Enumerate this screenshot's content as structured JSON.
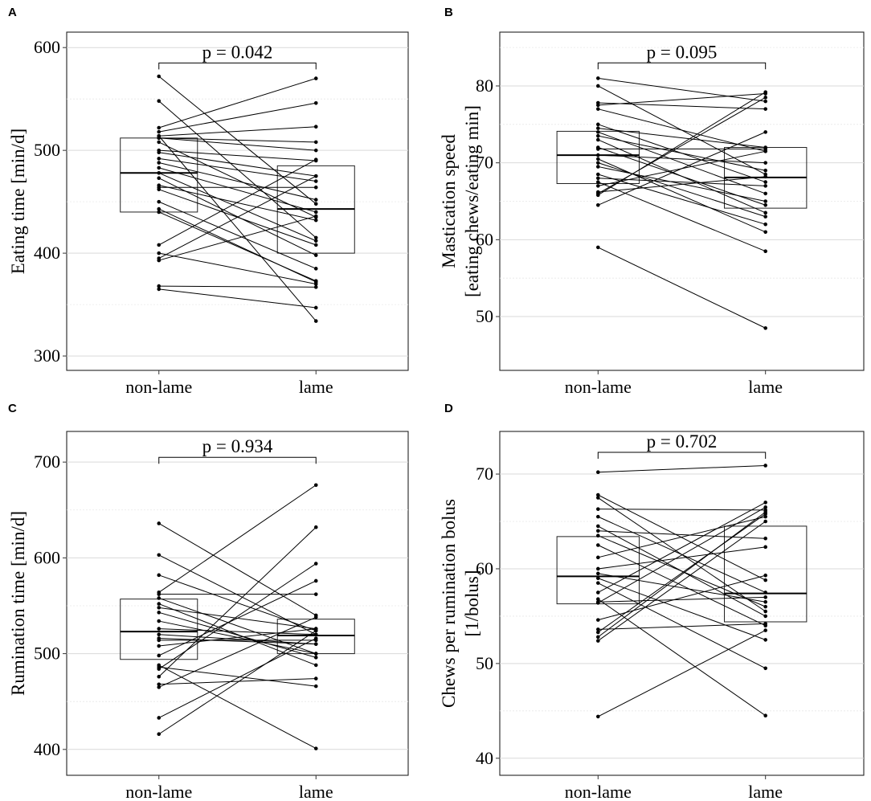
{
  "chart_data": [
    {
      "panel": "A",
      "type": "boxplot-paired",
      "categories": [
        "non-lame",
        "lame"
      ],
      "ylabel_lines": [
        "Eating time [min/d]"
      ],
      "yticks": [
        300,
        400,
        500,
        600
      ],
      "ylim": [
        286,
        615
      ],
      "minor_grid": [
        350,
        450,
        550
      ],
      "p_label": "p = 0.042",
      "bracket_y": 585,
      "boxes": [
        {
          "q1": 440,
          "median": 478,
          "q3": 512
        },
        {
          "q1": 400,
          "median": 443,
          "q3": 485
        }
      ],
      "pairs": [
        [
          572,
          448
        ],
        [
          548,
          415
        ],
        [
          522,
          570
        ],
        [
          518,
          546
        ],
        [
          514,
          523
        ],
        [
          512,
          508
        ],
        [
          512,
          500
        ],
        [
          508,
          435
        ],
        [
          500,
          490
        ],
        [
          498,
          475
        ],
        [
          492,
          470
        ],
        [
          488,
          452
        ],
        [
          483,
          440
        ],
        [
          478,
          412
        ],
        [
          473,
          398
        ],
        [
          466,
          432
        ],
        [
          464,
          464
        ],
        [
          462,
          408
        ],
        [
          450,
          385
        ],
        [
          443,
          372
        ],
        [
          440,
          373
        ],
        [
          408,
          491
        ],
        [
          400,
          370
        ],
        [
          395,
          475
        ],
        [
          393,
          436
        ],
        [
          368,
          367
        ],
        [
          365,
          347
        ],
        [
          514,
          334
        ]
      ]
    },
    {
      "panel": "B",
      "type": "boxplot-paired",
      "categories": [
        "non-lame",
        "lame"
      ],
      "ylabel_lines": [
        "Mastication speed",
        "[eating chews/eating min]"
      ],
      "yticks": [
        50,
        60,
        70,
        80
      ],
      "ylim": [
        43,
        87
      ],
      "minor_grid": [
        55,
        65,
        75,
        85
      ],
      "p_label": "p = 0.095",
      "bracket_y": 83,
      "boxes": [
        {
          "q1": 67.3,
          "median": 71,
          "q3": 74.1
        },
        {
          "q1": 64.1,
          "median": 68.1,
          "q3": 72
        }
      ],
      "pairs": [
        [
          81,
          78
        ],
        [
          80,
          68.5
        ],
        [
          77.8,
          77
        ],
        [
          77.5,
          79
        ],
        [
          77,
          71.5
        ],
        [
          75,
          67.5
        ],
        [
          74.5,
          72
        ],
        [
          74,
          66
        ],
        [
          73.5,
          69
        ],
        [
          72,
          64.5
        ],
        [
          71.8,
          71.8
        ],
        [
          71,
          70
        ],
        [
          70,
          63
        ],
        [
          69.5,
          65
        ],
        [
          68.5,
          62
        ],
        [
          68,
          67
        ],
        [
          67.5,
          58.5
        ],
        [
          67,
          71.5
        ],
        [
          66,
          78.5
        ],
        [
          65.8,
          79.2
        ],
        [
          64.5,
          74
        ],
        [
          66.2,
          68.2
        ],
        [
          70.5,
          61
        ],
        [
          73,
          63.5
        ],
        [
          59,
          48.5
        ]
      ]
    },
    {
      "panel": "C",
      "type": "boxplot-paired",
      "categories": [
        "non-lame",
        "lame"
      ],
      "ylabel_lines": [
        "Rumination time [min/d]"
      ],
      "yticks": [
        400,
        500,
        600,
        700
      ],
      "ylim": [
        373,
        732
      ],
      "minor_grid": [
        450,
        550,
        650
      ],
      "p_label": "p = 0.934",
      "bracket_y": 705,
      "boxes": [
        {
          "q1": 494,
          "median": 523,
          "q3": 557
        },
        {
          "q1": 500,
          "median": 519,
          "q3": 536
        }
      ],
      "pairs": [
        [
          636,
          540
        ],
        [
          603,
          520
        ],
        [
          582,
          524
        ],
        [
          564,
          676
        ],
        [
          562,
          562
        ],
        [
          558,
          500
        ],
        [
          552,
          488
        ],
        [
          548,
          526
        ],
        [
          543,
          496
        ],
        [
          534,
          500
        ],
        [
          526,
          520
        ],
        [
          520,
          510
        ],
        [
          516,
          510
        ],
        [
          514,
          514
        ],
        [
          508,
          526
        ],
        [
          498,
          576
        ],
        [
          486,
          466
        ],
        [
          484,
          594
        ],
        [
          476,
          632
        ],
        [
          468,
          474
        ],
        [
          465,
          538
        ],
        [
          433,
          516
        ],
        [
          416,
          524
        ],
        [
          488,
          401
        ]
      ]
    },
    {
      "panel": "D",
      "type": "boxplot-paired",
      "categories": [
        "non-lame",
        "lame"
      ],
      "ylabel_lines": [
        "Chews per rumination bolus",
        "[1/bolus]"
      ],
      "yticks": [
        40,
        50,
        60,
        70
      ],
      "ylim": [
        38.2,
        74.5
      ],
      "minor_grid": [
        45,
        55,
        65
      ],
      "p_label": "p = 0.702",
      "bracket_y": 72.3,
      "boxes": [
        {
          "q1": 56.3,
          "median": 59.2,
          "q3": 63.4
        },
        {
          "q1": 54.4,
          "median": 57.4,
          "q3": 64.5
        }
      ],
      "pairs": [
        [
          70.2,
          70.9
        ],
        [
          67.8,
          58.8
        ],
        [
          67.5,
          55.5
        ],
        [
          66.3,
          66.2
        ],
        [
          65.5,
          57.5
        ],
        [
          64.5,
          55
        ],
        [
          64,
          63.2
        ],
        [
          63.5,
          56
        ],
        [
          62.5,
          54
        ],
        [
          61.2,
          65.5
        ],
        [
          60,
          62.3
        ],
        [
          59.5,
          56.5
        ],
        [
          59,
          52.5
        ],
        [
          58.5,
          49.5
        ],
        [
          57.5,
          67
        ],
        [
          56.8,
          44.5
        ],
        [
          56.5,
          57
        ],
        [
          56.4,
          66.5
        ],
        [
          54.6,
          59.3
        ],
        [
          53.6,
          54.2
        ],
        [
          53.3,
          65.8
        ],
        [
          52.8,
          66
        ],
        [
          52.4,
          65
        ],
        [
          44.4,
          53.5
        ]
      ]
    }
  ]
}
